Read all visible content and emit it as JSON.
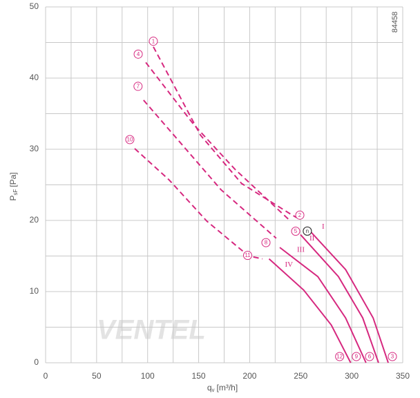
{
  "chart_data": {
    "type": "line",
    "xlabel": {
      "main": "q",
      "sub": "v",
      "unit": "[m³/h]"
    },
    "ylabel": {
      "main": "P",
      "sub": "sF",
      "unit": "[Pa]"
    },
    "code": "84458",
    "watermark": "VENTEL",
    "xlim": [
      0,
      350
    ],
    "xticks": [
      0,
      50,
      100,
      150,
      200,
      250,
      300,
      350
    ],
    "ylim": [
      0,
      50
    ],
    "yticks": [
      0,
      10,
      20,
      30,
      40,
      50
    ],
    "grid": true,
    "color": "#d6287f",
    "series": [
      {
        "name": "I",
        "start_label": "1",
        "mid_label": "2",
        "end_label": "3",
        "dashed_x": [
          105.6,
          151.7,
          192,
          240,
          246
        ],
        "dashed_y": [
          44.4,
          32,
          25.2,
          20.9,
          20.4
        ],
        "x": [
          256.6,
          294,
          321,
          335.8
        ],
        "y": [
          18.9,
          13.1,
          6.3,
          0
        ]
      },
      {
        "name": "II",
        "start_label": "4",
        "mid_label": "5",
        "end_label": "6",
        "dashed_x": [
          98.2,
          145,
          185.5,
          240
        ],
        "dashed_y": [
          42.2,
          33.5,
          27.2,
          19.9
        ],
        "x": [
          249.8,
          287,
          310.8,
          326.3
        ],
        "y": [
          18,
          12.1,
          6.3,
          0
        ]
      },
      {
        "name": "III",
        "start_label": "7",
        "mid_label": "8",
        "end_label": "9",
        "dashed_x": [
          96,
          131,
          172,
          226
        ],
        "dashed_y": [
          36.9,
          31.1,
          24.3,
          17.5
        ],
        "x": [
          229.5,
          266.8,
          294,
          314
        ],
        "y": [
          16.2,
          12.1,
          6.3,
          0
        ]
      },
      {
        "name": "IV",
        "start_label": "10",
        "mid_label": "11",
        "end_label": "12",
        "dashed_x": [
          87.3,
          121,
          158,
          199,
          212.6
        ],
        "dashed_y": [
          30.1,
          25.7,
          19.9,
          15,
          14.6
        ],
        "x": [
          219,
          253,
          280,
          299
        ],
        "y": [
          14.6,
          10.2,
          5.3,
          0
        ]
      }
    ],
    "operating_point": {
      "label": "n",
      "x": 256.5,
      "y": 18.5
    }
  }
}
